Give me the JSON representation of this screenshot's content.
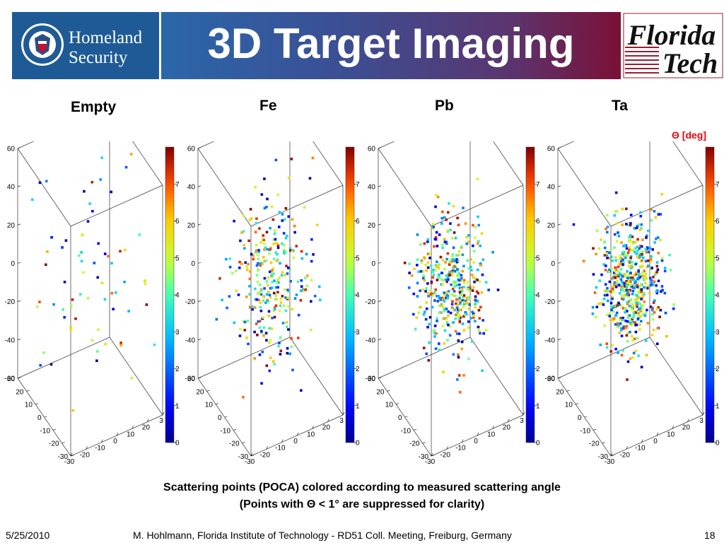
{
  "header": {
    "title": "3D Target Imaging",
    "left_logo": {
      "line1": "Homeland",
      "line2": "Security",
      "seal_text": "U.S. DEPARTMENT OF HOMELAND SECURITY"
    },
    "right_logo": {
      "line1": "Florida",
      "line2": "Tech"
    }
  },
  "colors": {
    "left_logo_bg": "#1e5b96",
    "title_gradient_start": "#2a67a9",
    "title_gradient_end": "#7a1036",
    "theta_label": "#e8000b"
  },
  "theta_unit_label": "Θ [deg]",
  "chart_data": [
    {
      "type": "scatter",
      "title": "Empty",
      "dimensions": 3,
      "z_ticks": [
        "60",
        "40",
        "20",
        "0",
        "-20",
        "-40",
        "-60"
      ],
      "x_ticks": [
        "-30",
        "-20",
        "-10",
        "0",
        "10",
        "20",
        "3"
      ],
      "y_ticks": [
        "30",
        "20",
        "10",
        "0",
        "-10",
        "-20",
        "-30"
      ],
      "colorbar": {
        "min": 0,
        "max": 8,
        "ticks": [
          "7",
          "6",
          "5",
          "4",
          "3",
          "2",
          "1",
          "0"
        ]
      },
      "point_count": 68,
      "spread": 34,
      "seed": 11
    },
    {
      "type": "scatter",
      "title": "Fe",
      "dimensions": 3,
      "z_ticks": [
        "60",
        "40",
        "20",
        "0",
        "-20",
        "-40",
        "-60"
      ],
      "x_ticks": [
        "-30",
        "-20",
        "-10",
        "0",
        "10",
        "20",
        "3"
      ],
      "y_ticks": [
        "30",
        "20",
        "10",
        "0",
        "-10",
        "-20",
        "-30"
      ],
      "colorbar": {
        "min": 0,
        "max": 8,
        "ticks": [
          "7",
          "6",
          "5",
          "4",
          "3",
          "2",
          "1",
          "0"
        ]
      },
      "point_count": 300,
      "spread": 22,
      "seed": 23
    },
    {
      "type": "scatter",
      "title": "Pb",
      "dimensions": 3,
      "z_ticks": [
        "60",
        "40",
        "20",
        "0",
        "-20",
        "-40",
        "-60"
      ],
      "x_ticks": [
        "-30",
        "-20",
        "-10",
        "0",
        "10",
        "20",
        "3"
      ],
      "y_ticks": [
        "30",
        "20",
        "10",
        "0",
        "-10",
        "-20",
        "-30"
      ],
      "colorbar": {
        "min": 0,
        "max": 8,
        "ticks": [
          "7",
          "6",
          "5",
          "4",
          "3",
          "2",
          "1",
          "0"
        ]
      },
      "point_count": 420,
      "spread": 18,
      "seed": 37
    },
    {
      "type": "scatter",
      "title": "Ta",
      "dimensions": 3,
      "z_ticks": [
        "60",
        "40",
        "20",
        "0",
        "-20",
        "-40",
        "-60"
      ],
      "x_ticks": [
        "-30",
        "-20",
        "-10",
        "0",
        "10",
        "20",
        "3"
      ],
      "y_ticks": [
        "30",
        "20",
        "10",
        "0",
        "-10",
        "-20",
        "-30"
      ],
      "colorbar": {
        "min": 0,
        "max": 8,
        "ticks": [
          "7",
          "6",
          "5",
          "4",
          "3",
          "2",
          "1",
          "0"
        ]
      },
      "point_count": 560,
      "spread": 17,
      "seed": 53
    }
  ],
  "caption": {
    "line1": "Scattering points (POCA) colored according to measured scattering angle",
    "line2": "(Points with Θ < 1° are suppressed for clarity)"
  },
  "footer": {
    "date": "5/25/2010",
    "citation": "M. Hohlmann, Florida Institute of Technology - RD51 Coll. Meeting, Freiburg, Germany",
    "page": "18"
  }
}
